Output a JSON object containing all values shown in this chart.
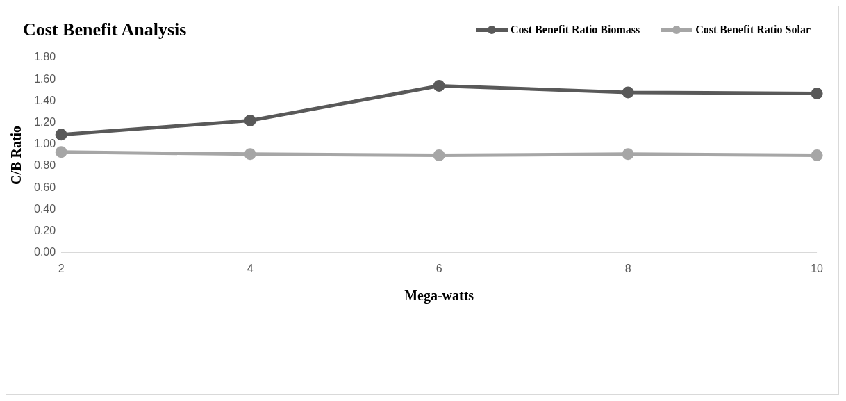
{
  "chart_data": {
    "type": "line",
    "title": "Cost Benefit Analysis",
    "xlabel": "Mega-watts",
    "ylabel": "C/B Ratio",
    "categories": [
      "2",
      "4",
      "6",
      "8",
      "10"
    ],
    "series": [
      {
        "name": "Cost Benefit Ratio Biomass",
        "color": "#595959",
        "values": [
          1.09,
          1.22,
          1.54,
          1.48,
          1.47
        ]
      },
      {
        "name": "Cost Benefit Ratio Solar",
        "color": "#a6a6a6",
        "values": [
          0.93,
          0.91,
          0.9,
          0.91,
          0.9
        ]
      }
    ],
    "ylim": [
      0,
      1.8
    ],
    "yticks": [
      {
        "value": 0,
        "label": "0.00"
      },
      {
        "value": 0.2,
        "label": "0.20"
      },
      {
        "value": 0.4,
        "label": "0.40"
      },
      {
        "value": 0.6,
        "label": "0.60"
      },
      {
        "value": 0.8,
        "label": "0.80"
      },
      {
        "value": 1,
        "label": "1.00"
      },
      {
        "value": 1.2,
        "label": "1.20"
      },
      {
        "value": 1.4,
        "label": "1.40"
      },
      {
        "value": 1.6,
        "label": "1.60"
      },
      {
        "value": 1.8,
        "label": "1.80"
      }
    ],
    "grid": false,
    "legend": "top right",
    "marker": "circle",
    "line_style": "solid"
  }
}
